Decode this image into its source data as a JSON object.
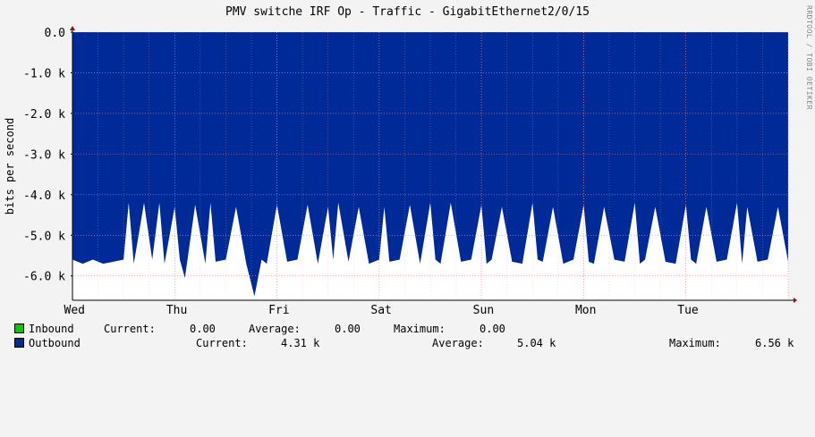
{
  "chart_data": {
    "type": "area",
    "title": "PMV switche IRF Op - Traffic - GigabitEthernet2/0/15",
    "ylabel": "bits per second",
    "y_ticks": [
      "0.0",
      "-1.0 k",
      "-2.0 k",
      "-3.0 k",
      "-4.0 k",
      "-5.0 k",
      "-6.0 k"
    ],
    "y_tick_values": [
      0,
      -1000,
      -2000,
      -3000,
      -4000,
      -5000,
      -6000
    ],
    "ylim": [
      -6600,
      0
    ],
    "x_ticks": [
      "Wed",
      "Thu",
      "Fri",
      "Sat",
      "Sun",
      "Mon",
      "Tue"
    ],
    "xlim": [
      0,
      7
    ],
    "grid": true,
    "series": [
      {
        "name": "Inbound",
        "color": "#00cc00",
        "x": [
          0,
          7
        ],
        "y": [
          0,
          0
        ]
      },
      {
        "name": "Outbound",
        "color": "#002a97",
        "x": [
          0,
          0.1,
          0.2,
          0.3,
          0.4,
          0.5,
          0.55,
          0.6,
          0.7,
          0.78,
          0.85,
          0.9,
          1.0,
          1.05,
          1.1,
          1.2,
          1.3,
          1.35,
          1.4,
          1.5,
          1.6,
          1.7,
          1.78,
          1.85,
          1.9,
          2.0,
          2.1,
          2.2,
          2.3,
          2.4,
          2.5,
          2.55,
          2.6,
          2.7,
          2.8,
          2.9,
          3.0,
          3.05,
          3.1,
          3.2,
          3.3,
          3.4,
          3.5,
          3.55,
          3.6,
          3.7,
          3.8,
          3.9,
          4.0,
          4.05,
          4.1,
          4.2,
          4.3,
          4.4,
          4.5,
          4.55,
          4.6,
          4.7,
          4.8,
          4.9,
          5.0,
          5.05,
          5.1,
          5.2,
          5.3,
          5.4,
          5.5,
          5.55,
          5.6,
          5.7,
          5.8,
          5.9,
          6.0,
          6.05,
          6.1,
          6.2,
          6.3,
          6.4,
          6.5,
          6.55,
          6.6,
          6.7,
          6.8,
          6.9,
          7.0
        ],
        "y": [
          -5600,
          -5700,
          -5600,
          -5700,
          -5650,
          -5600,
          -4200,
          -5700,
          -4200,
          -5600,
          -4200,
          -5700,
          -4300,
          -5600,
          -6050,
          -4250,
          -5700,
          -4200,
          -5650,
          -5600,
          -4300,
          -5700,
          -6500,
          -5600,
          -5700,
          -4250,
          -5650,
          -5600,
          -4250,
          -5700,
          -4300,
          -5600,
          -4200,
          -5650,
          -4300,
          -5700,
          -5600,
          -4300,
          -5650,
          -5600,
          -4250,
          -5700,
          -4200,
          -5600,
          -5700,
          -4200,
          -5650,
          -5600,
          -4250,
          -5700,
          -5600,
          -4300,
          -5650,
          -5700,
          -4200,
          -5600,
          -5650,
          -4300,
          -5700,
          -5600,
          -4250,
          -5650,
          -5700,
          -4300,
          -5600,
          -5650,
          -4200,
          -5700,
          -5600,
          -4300,
          -5650,
          -5700,
          -4250,
          -5600,
          -5700,
          -4300,
          -5650,
          -5600,
          -4200,
          -5700,
          -4300,
          -5650,
          -5600,
          -4300,
          -5650
        ]
      }
    ]
  },
  "legend": [
    {
      "label": "Inbound",
      "color": "#00cc00",
      "current_label": "Current:",
      "current": "0.00",
      "average_label": "Average:",
      "average": "0.00",
      "maximum_label": "Maximum:",
      "maximum": "0.00"
    },
    {
      "label": "Outbound",
      "color": "#002a97",
      "current_label": "Current:",
      "current": "4.31 k",
      "average_label": "Average:",
      "average": "5.04 k",
      "maximum_label": "Maximum:",
      "maximum": "6.56 k"
    }
  ],
  "watermark": "RRDTOOL / TOBI OETIKER"
}
